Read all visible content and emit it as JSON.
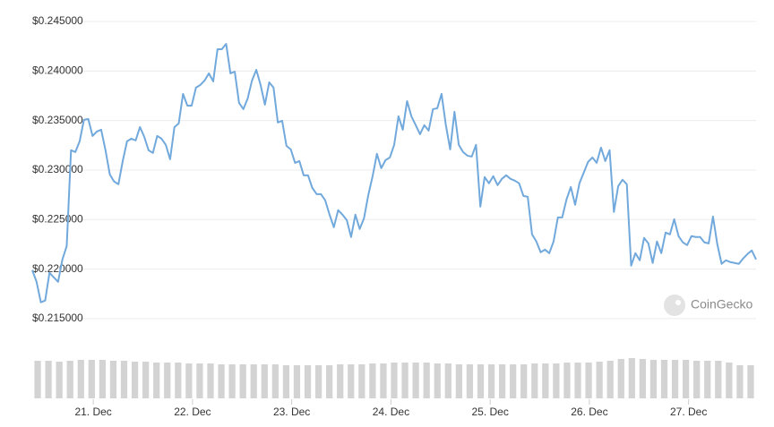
{
  "watermark": "CoinGecko",
  "chart_data": [
    {
      "type": "line",
      "color": "#72a9dc",
      "grid": true,
      "xlim": [
        20.385,
        27.68
      ],
      "xticks": [
        {
          "value": 21,
          "label": "21. Dec"
        },
        {
          "value": 22,
          "label": "22. Dec"
        },
        {
          "value": 23,
          "label": "23. Dec"
        },
        {
          "value": 24,
          "label": "24. Dec"
        },
        {
          "value": 25,
          "label": "25. Dec"
        },
        {
          "value": 26,
          "label": "26. Dec"
        },
        {
          "value": 27,
          "label": "27. Dec"
        }
      ],
      "ylim": [
        0.214,
        0.245
      ],
      "yticks": [
        {
          "value": 0.215,
          "label": "$0.215000"
        },
        {
          "value": 0.22,
          "label": "$0.220000"
        },
        {
          "value": 0.225,
          "label": "$0.225000"
        },
        {
          "value": 0.23,
          "label": "$0.230000"
        },
        {
          "value": 0.235,
          "label": "$0.235000"
        },
        {
          "value": 0.24,
          "label": "$0.240000"
        },
        {
          "value": 0.245,
          "label": "$0.245000"
        }
      ],
      "values": [
        0.2199,
        0.21872,
        0.21665,
        0.21683,
        0.21963,
        0.21917,
        0.21872,
        0.22098,
        0.22233,
        0.232,
        0.23182,
        0.2329,
        0.23507,
        0.23516,
        0.23344,
        0.23389,
        0.23407,
        0.232,
        0.22956,
        0.22884,
        0.22857,
        0.23091,
        0.2329,
        0.23317,
        0.23299,
        0.23434,
        0.23335,
        0.232,
        0.23173,
        0.23344,
        0.23317,
        0.23254,
        0.23109,
        0.23434,
        0.23471,
        0.23769,
        0.23651,
        0.23651,
        0.23832,
        0.23859,
        0.23904,
        0.23976,
        0.23895,
        0.2422,
        0.2422,
        0.24274,
        0.23976,
        0.23994,
        0.23678,
        0.23615,
        0.23723,
        0.23904,
        0.24012,
        0.23859,
        0.2366,
        0.23886,
        0.23832,
        0.2348,
        0.23498,
        0.23245,
        0.23209,
        0.23073,
        0.23091,
        0.22947,
        0.22947,
        0.2282,
        0.22757,
        0.22757,
        0.22694,
        0.2255,
        0.22423,
        0.22595,
        0.2255,
        0.22495,
        0.22324,
        0.2255,
        0.22405,
        0.22513,
        0.22748,
        0.22938,
        0.23164,
        0.23019,
        0.231,
        0.23127,
        0.23254,
        0.23543,
        0.23407,
        0.23696,
        0.23543,
        0.23453,
        0.23362,
        0.23453,
        0.23398,
        0.23615,
        0.23624,
        0.23769,
        0.23453,
        0.23209,
        0.23588,
        0.23254,
        0.23182,
        0.23145,
        0.23136,
        0.23254,
        0.22631,
        0.22929,
        0.22866,
        0.22938,
        0.22848,
        0.22911,
        0.22947,
        0.22911,
        0.22893,
        0.22866,
        0.22739,
        0.2273,
        0.22351,
        0.22279,
        0.2217,
        0.22197,
        0.22161,
        0.22279,
        0.22522,
        0.22522,
        0.22703,
        0.22829,
        0.22649,
        0.22866,
        0.22974,
        0.23082,
        0.23127,
        0.23073,
        0.23227,
        0.23091,
        0.232,
        0.22577,
        0.22838,
        0.22902,
        0.22857,
        0.22035,
        0.22161,
        0.22089,
        0.22315,
        0.2226,
        0.22062,
        0.22279,
        0.22161,
        0.22369,
        0.22351,
        0.22504,
        0.22333,
        0.2227,
        0.22242,
        0.22333,
        0.22324,
        0.22324,
        0.2227,
        0.2226,
        0.22531,
        0.22252,
        0.22053,
        0.22089,
        0.22071,
        0.22062,
        0.22053,
        0.22107,
        0.22152,
        0.22188,
        0.22098
      ]
    },
    {
      "type": "bar",
      "color": "#d3d3d3",
      "ylim": [
        0,
        50
      ],
      "values": [
        42,
        42,
        41,
        42,
        43,
        43,
        43,
        42,
        42,
        41,
        41,
        40,
        40,
        40,
        39,
        39,
        39,
        38,
        38,
        38,
        38,
        38,
        38,
        37,
        37,
        37,
        37,
        37,
        38,
        38,
        38,
        39,
        39,
        40,
        40,
        40,
        40,
        39,
        39,
        38,
        38,
        38,
        38,
        38,
        38,
        38,
        39,
        39,
        39,
        40,
        40,
        40,
        41,
        42,
        44,
        45,
        44,
        43,
        43,
        43,
        43,
        42,
        42,
        42,
        40,
        37,
        37
      ]
    }
  ]
}
